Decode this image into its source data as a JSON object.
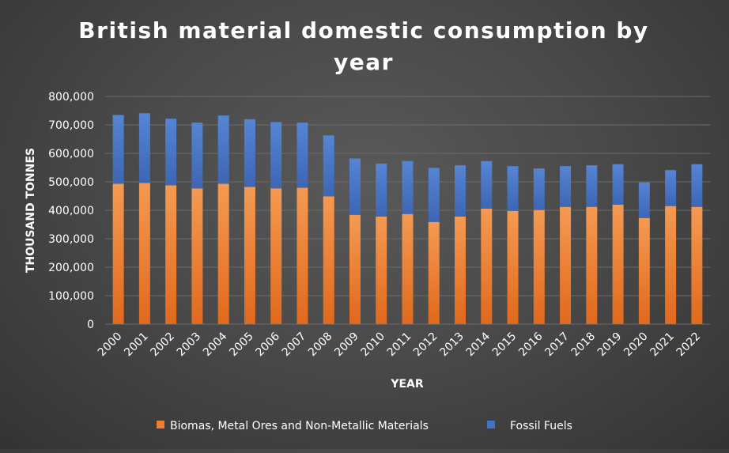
{
  "chart_data": {
    "type": "bar",
    "stacked": true,
    "title": "British material domestic consumption by year",
    "xlabel": "YEAR",
    "ylabel": "THOUSAND TONNES",
    "ylim": [
      0,
      800000
    ],
    "y_ticks": [
      0,
      100000,
      200000,
      300000,
      400000,
      500000,
      600000,
      700000,
      800000
    ],
    "y_tick_labels": [
      "0",
      "100,000",
      "200,000",
      "300,000",
      "400,000",
      "500,000",
      "600,000",
      "700,000",
      "800,000"
    ],
    "grid": true,
    "legend_position": "bottom",
    "categories": [
      "2000",
      "2001",
      "2002",
      "2003",
      "2004",
      "2005",
      "2006",
      "2007",
      "2008",
      "2009",
      "2010",
      "2011",
      "2012",
      "2013",
      "2014",
      "2015",
      "2016",
      "2017",
      "2018",
      "2019",
      "2020",
      "2021",
      "2022"
    ],
    "series": [
      {
        "name": "Biomas, Metal Ores and Non-Metallic Materials",
        "color": "#ED7D31",
        "values": [
          493000,
          496000,
          488000,
          477000,
          493000,
          482000,
          477000,
          479000,
          449000,
          384000,
          378000,
          387000,
          359000,
          378000,
          406000,
          398000,
          401000,
          412000,
          412000,
          420000,
          373000,
          415000,
          412000
        ]
      },
      {
        "name": "Fossil Fuels",
        "color": "#4472C4",
        "values": [
          242000,
          245000,
          234000,
          231000,
          240000,
          238000,
          233000,
          229000,
          214000,
          198000,
          186000,
          186000,
          190000,
          180000,
          167000,
          157000,
          146000,
          143000,
          146000,
          142000,
          125000,
          126000,
          150000
        ]
      }
    ]
  }
}
